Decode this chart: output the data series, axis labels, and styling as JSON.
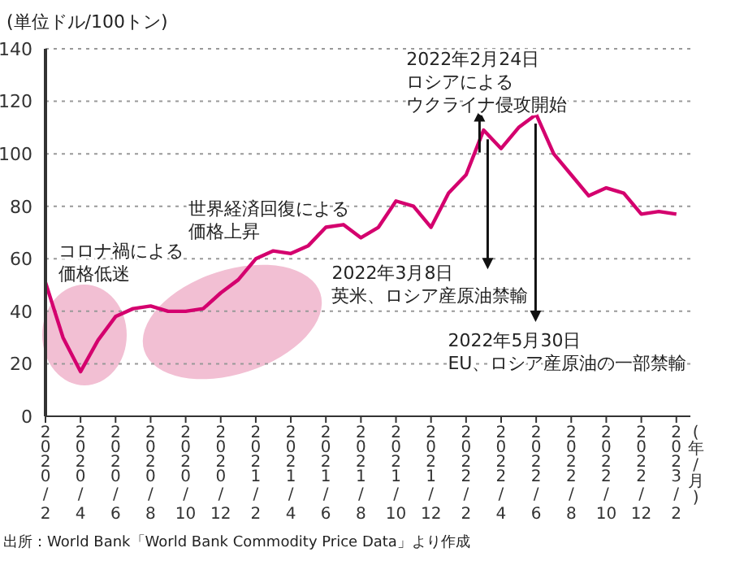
{
  "chart_data": {
    "type": "line",
    "ylabel": "(単位ドル/100トン)",
    "xlabel": "(年/月)",
    "x": [
      "2020-02",
      "2020-03",
      "2020-04",
      "2020-05",
      "2020-06",
      "2020-07",
      "2020-08",
      "2020-09",
      "2020-10",
      "2020-11",
      "2020-12",
      "2021-01",
      "2021-02",
      "2021-03",
      "2021-04",
      "2021-05",
      "2021-06",
      "2021-07",
      "2021-08",
      "2021-09",
      "2021-10",
      "2021-11",
      "2021-12",
      "2022-01",
      "2022-02",
      "2022-03",
      "2022-04",
      "2022-05",
      "2022-06",
      "2022-07",
      "2022-08",
      "2022-09",
      "2022-10",
      "2022-11",
      "2022-12",
      "2023-01",
      "2023-02"
    ],
    "series": [
      {
        "color": "#d4006e",
        "values": [
          51,
          30,
          17,
          29,
          38,
          41,
          42,
          40,
          40,
          41,
          47,
          52,
          60,
          63,
          62,
          65,
          72,
          73,
          68,
          72,
          82,
          80,
          72,
          85,
          92,
          109,
          102,
          110,
          115,
          100,
          92,
          84,
          87,
          85,
          77,
          78,
          77
        ]
      }
    ],
    "xlim": [
      "2020-02-01",
      "2023-02-25"
    ],
    "xticks": [
      {
        "value": "2020-02",
        "label": "2020/2"
      },
      {
        "value": "2020-04",
        "label": "2020/4"
      },
      {
        "value": "2020-06",
        "label": "2020/6"
      },
      {
        "value": "2020-08",
        "label": "2020/8"
      },
      {
        "value": "2020-10",
        "label": "2020/10"
      },
      {
        "value": "2020-12",
        "label": "2020/12"
      },
      {
        "value": "2021-02",
        "label": "2021/2"
      },
      {
        "value": "2021-04",
        "label": "2021/4"
      },
      {
        "value": "2021-06",
        "label": "2021/6"
      },
      {
        "value": "2021-08",
        "label": "2021/8"
      },
      {
        "value": "2021-10",
        "label": "2021/10"
      },
      {
        "value": "2021-12",
        "label": "2021/12"
      },
      {
        "value": "2022-02",
        "label": "2022/2"
      },
      {
        "value": "2022-04",
        "label": "2022/4"
      },
      {
        "value": "2022-06",
        "label": "2022/6"
      },
      {
        "value": "2022-08",
        "label": "2022/8"
      },
      {
        "value": "2022-10",
        "label": "2022/10"
      },
      {
        "value": "2022-12",
        "label": "2022/12"
      },
      {
        "value": "2023-02",
        "label": "2023/2"
      }
    ],
    "ylim": [
      0,
      140
    ],
    "yticks": [
      0,
      20,
      40,
      60,
      80,
      100,
      120,
      140
    ],
    "grid": "y",
    "legend": false,
    "marker": "none",
    "line_style": "solid",
    "annotations": [
      "コロナ禍による価格低迷",
      "世界経済回復による価格上昇",
      {
        "text": "2022年2月24日ロシアによるウクライナ侵攻開始",
        "x": "2022-02-24",
        "y": 98
      },
      {
        "text": "2022年3月8日英米、ロシア産原油禁輸",
        "x": "2022-03-08",
        "y": 108
      },
      {
        "text": "2022年5月30日EU、ロシア産原油の一部禁輸",
        "x": "2022-05-30",
        "y": 114
      },
      "出所：World Bank「World Bank Commodity Price Data」より作成"
    ]
  }
}
